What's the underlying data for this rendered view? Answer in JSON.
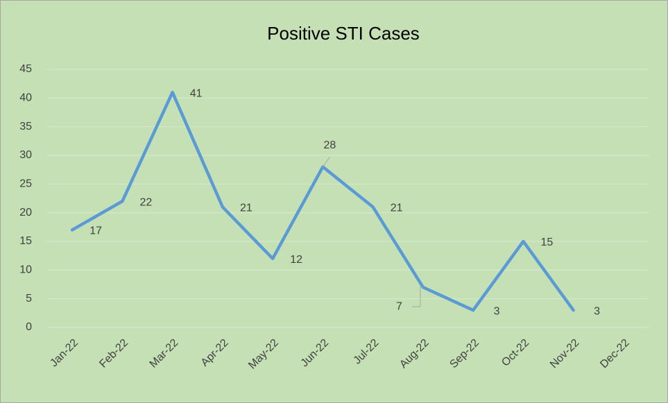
{
  "chart_data": {
    "type": "line",
    "title": "Positive STI Cases",
    "categories": [
      "Jan-22",
      "Feb-22",
      "Mar-22",
      "Apr-22",
      "May-22",
      "Jun-22",
      "Jul-22",
      "Aug-22",
      "Sep-22",
      "Oct-22",
      "Nov-22",
      "Dec-22"
    ],
    "values": [
      17,
      22,
      41,
      21,
      12,
      28,
      21,
      7,
      3,
      15,
      3,
      null
    ],
    "color": "#5b9bd5",
    "ylim": [
      0,
      45
    ],
    "yticks": [
      0,
      5,
      10,
      15,
      20,
      25,
      30,
      35,
      40,
      45
    ],
    "grid": true
  }
}
